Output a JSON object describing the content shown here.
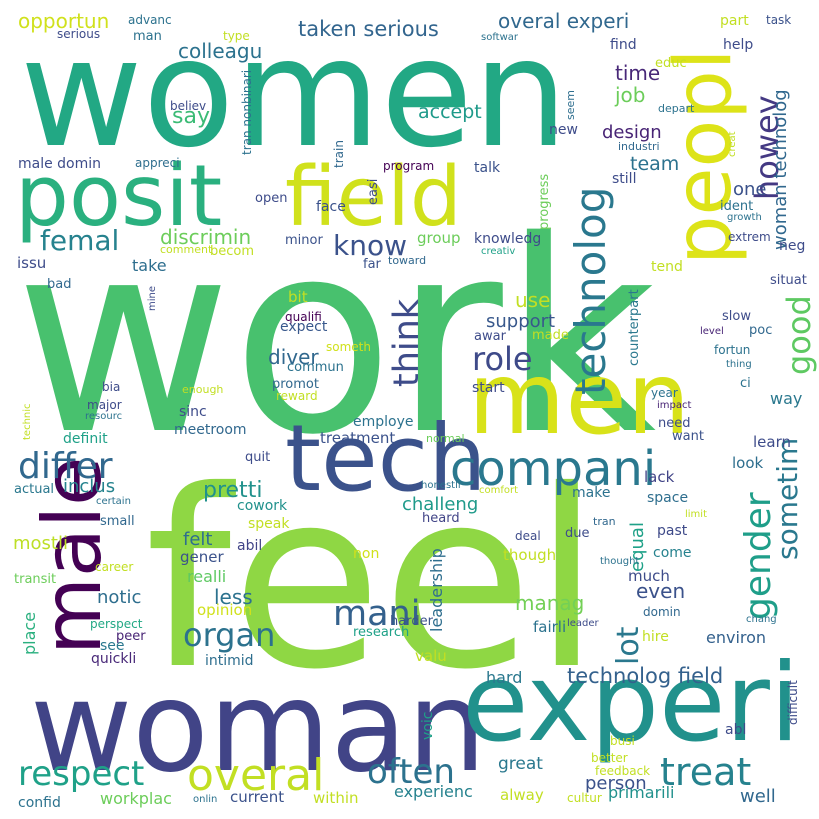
{
  "words": [
    {
      "text": "work",
      "color": "#48c16e"
    },
    {
      "text": "feel",
      "color": "#8fd744"
    },
    {
      "text": "women",
      "color": "#22a884"
    },
    {
      "text": "woman",
      "color": "#414487"
    },
    {
      "text": "experi",
      "color": "#21918c"
    },
    {
      "text": "tech",
      "color": "#3b528b"
    },
    {
      "text": "men",
      "color": "#d8e219"
    },
    {
      "text": "posit",
      "color": "#2ab07f"
    },
    {
      "text": "field",
      "color": "#d0e11c"
    },
    {
      "text": "peopl",
      "color": "#dde318"
    },
    {
      "text": "male",
      "color": "#440154"
    },
    {
      "text": "compani",
      "color": "#2a788e"
    },
    {
      "text": "technolog",
      "color": "#2a788e"
    },
    {
      "text": "overal",
      "color": "#c2df23"
    },
    {
      "text": "treat",
      "color": "#26828e"
    },
    {
      "text": "respect",
      "color": "#1fa188"
    },
    {
      "text": "differ",
      "color": "#31688e"
    },
    {
      "text": "often",
      "color": "#2c728e"
    },
    {
      "text": "gender",
      "color": "#1f9e89"
    },
    {
      "text": "mani",
      "color": "#34618d"
    },
    {
      "text": "organ",
      "color": "#2c728e"
    },
    {
      "text": "role",
      "color": "#3e4a89"
    },
    {
      "text": "think",
      "color": "#3e4c8a"
    },
    {
      "text": "sometim",
      "color": "#2a788e"
    },
    {
      "text": "good",
      "color": "#5ec962"
    },
    {
      "text": "know",
      "color": "#3b528b"
    },
    {
      "text": "femal",
      "color": "#26828e"
    },
    {
      "text": "howev",
      "color": "#443983"
    },
    {
      "text": "lot",
      "color": "#2a788e"
    },
    {
      "text": "opportun",
      "color": "#d0e11c"
    },
    {
      "text": "colleagu",
      "color": "#2c728e"
    },
    {
      "text": "taken serious",
      "color": "#32658e"
    },
    {
      "text": "overal experi",
      "color": "#31688e"
    },
    {
      "text": "technolog field",
      "color": "#34618d"
    },
    {
      "text": "woman technolog",
      "color": "#31688e"
    },
    {
      "text": "discrimin",
      "color": "#6ccd5a"
    },
    {
      "text": "pretti",
      "color": "#21918c"
    },
    {
      "text": "diver",
      "color": "#31688e"
    },
    {
      "text": "manag",
      "color": "#73d056"
    },
    {
      "text": "say",
      "color": "#3bbb75"
    },
    {
      "text": "time",
      "color": "#482878"
    },
    {
      "text": "job",
      "color": "#6ccd5a"
    },
    {
      "text": "design",
      "color": "#482475"
    },
    {
      "text": "accept",
      "color": "#1f9a8a"
    },
    {
      "text": "team",
      "color": "#2c728e"
    },
    {
      "text": "one",
      "color": "#3b528b"
    },
    {
      "text": "use",
      "color": "#c2df23"
    },
    {
      "text": "support",
      "color": "#38588c"
    },
    {
      "text": "even",
      "color": "#3b528b"
    },
    {
      "text": "equal",
      "color": "#1fa188"
    },
    {
      "text": "inclus",
      "color": "#25838e"
    },
    {
      "text": "challeng",
      "color": "#1f9a8a"
    },
    {
      "text": "leadership",
      "color": "#2e6e8e"
    },
    {
      "text": "less",
      "color": "#2c728e"
    },
    {
      "text": "felt",
      "color": "#2e6e8e"
    },
    {
      "text": "notic",
      "color": "#2e6e8e"
    },
    {
      "text": "mostli",
      "color": "#bddf26"
    },
    {
      "text": "place",
      "color": "#2ab07f"
    },
    {
      "text": "much",
      "color": "#3e4c8a"
    },
    {
      "text": "person",
      "color": "#3b528b"
    },
    {
      "text": "great",
      "color": "#2a788e"
    },
    {
      "text": "well",
      "color": "#31688e"
    },
    {
      "text": "workplac",
      "color": "#6ccd5a"
    },
    {
      "text": "primarili",
      "color": "#21918c"
    },
    {
      "text": "experienc",
      "color": "#26828e"
    },
    {
      "text": "current",
      "color": "#3b528b"
    },
    {
      "text": "within",
      "color": "#c2df23"
    },
    {
      "text": "alway",
      "color": "#c2df23"
    },
    {
      "text": "confid",
      "color": "#2c728e"
    },
    {
      "text": "voic",
      "color": "#1fa188"
    },
    {
      "text": "hard",
      "color": "#2a788e"
    },
    {
      "text": "environ",
      "color": "#34618d"
    },
    {
      "text": "hire",
      "color": "#c2df23"
    },
    {
      "text": "fairli",
      "color": "#2c728e"
    },
    {
      "text": "valu",
      "color": "#c2df23"
    },
    {
      "text": "intimid",
      "color": "#2e6e8e"
    },
    {
      "text": "research",
      "color": "#1fa188"
    },
    {
      "text": "opinion",
      "color": "#d0e11c"
    },
    {
      "text": "quickli",
      "color": "#482878"
    },
    {
      "text": "see",
      "color": "#2a788e"
    },
    {
      "text": "peer",
      "color": "#482475"
    },
    {
      "text": "perspect",
      "color": "#22a884"
    },
    {
      "text": "realli",
      "color": "#5ec962"
    },
    {
      "text": "gener",
      "color": "#3b528b"
    },
    {
      "text": "abil",
      "color": "#414487"
    },
    {
      "text": "cowork",
      "color": "#21918c"
    },
    {
      "text": "speak",
      "color": "#c2df23"
    },
    {
      "text": "non",
      "color": "#d0e11c"
    },
    {
      "text": "though",
      "color": "#c2df23"
    },
    {
      "text": "come",
      "color": "#26828e"
    },
    {
      "text": "space",
      "color": "#2e6e8e"
    },
    {
      "text": "past",
      "color": "#3e4a89"
    },
    {
      "text": "domin",
      "color": "#31688e"
    },
    {
      "text": "look",
      "color": "#2e6e8e"
    },
    {
      "text": "learn",
      "color": "#3e4c8a"
    },
    {
      "text": "lack",
      "color": "#414487"
    },
    {
      "text": "make",
      "color": "#2c728e"
    },
    {
      "text": "want",
      "color": "#3b528b"
    },
    {
      "text": "need",
      "color": "#3e4c8a"
    },
    {
      "text": "way",
      "color": "#2a788e"
    },
    {
      "text": "treatment",
      "color": "#3b528b"
    },
    {
      "text": "employe",
      "color": "#2c728e"
    },
    {
      "text": "meetroom",
      "color": "#31688e"
    },
    {
      "text": "sinc",
      "color": "#3e4c8a"
    },
    {
      "text": "definit",
      "color": "#1fa188"
    },
    {
      "text": "actual",
      "color": "#2a788e"
    },
    {
      "text": "small",
      "color": "#31688e"
    },
    {
      "text": "transit",
      "color": "#6ccd5a"
    },
    {
      "text": "career",
      "color": "#c2df23"
    },
    {
      "text": "start",
      "color": "#3e4c8a"
    },
    {
      "text": "harder",
      "color": "#3b528b"
    },
    {
      "text": "heard",
      "color": "#414487"
    },
    {
      "text": "quit",
      "color": "#3e4c8a"
    },
    {
      "text": "commun",
      "color": "#2c728e"
    },
    {
      "text": "promot",
      "color": "#31688e"
    },
    {
      "text": "reward",
      "color": "#c2df23"
    },
    {
      "text": "expect",
      "color": "#38588c"
    },
    {
      "text": "bit",
      "color": "#c2df23"
    },
    {
      "text": "qualifi",
      "color": "#440154"
    },
    {
      "text": "someth",
      "color": "#d0e11c"
    },
    {
      "text": "made",
      "color": "#c2df23"
    },
    {
      "text": "awar",
      "color": "#3e4c8a"
    },
    {
      "text": "counterpart",
      "color": "#2a788e"
    },
    {
      "text": "take",
      "color": "#2e6e8e"
    },
    {
      "text": "issu",
      "color": "#3e4c8a"
    },
    {
      "text": "male domin",
      "color": "#3e4c8a"
    },
    {
      "text": "appreci",
      "color": "#2e6e8e"
    },
    {
      "text": "becom",
      "color": "#c2df23"
    },
    {
      "text": "minor",
      "color": "#3b528b"
    },
    {
      "text": "comment",
      "color": "#c2df23"
    },
    {
      "text": "bad",
      "color": "#31688e"
    },
    {
      "text": "group",
      "color": "#6ccd5a"
    },
    {
      "text": "knowledg",
      "color": "#3e4c8a"
    },
    {
      "text": "creativ",
      "color": "#1fa188"
    },
    {
      "text": "toward",
      "color": "#31688e"
    },
    {
      "text": "far",
      "color": "#3b528b"
    },
    {
      "text": "face",
      "color": "#3b528b"
    },
    {
      "text": "open",
      "color": "#3e4c8a"
    },
    {
      "text": "easi",
      "color": "#3e4c8a"
    },
    {
      "text": "progress",
      "color": "#6ccd5a"
    },
    {
      "text": "talk",
      "color": "#3b528b"
    },
    {
      "text": "program",
      "color": "#440154"
    },
    {
      "text": "still",
      "color": "#3e4c8a"
    },
    {
      "text": "tend",
      "color": "#c2df23"
    },
    {
      "text": "neg",
      "color": "#3e4c8a"
    },
    {
      "text": "situat",
      "color": "#3e4c8a"
    },
    {
      "text": "slow",
      "color": "#3e4c8a"
    },
    {
      "text": "poc",
      "color": "#31688e"
    },
    {
      "text": "level",
      "color": "#482475"
    },
    {
      "text": "fortun",
      "color": "#2c728e"
    },
    {
      "text": "thing",
      "color": "#2c728e"
    },
    {
      "text": "ci",
      "color": "#2c728e"
    },
    {
      "text": "year",
      "color": "#2c728e"
    },
    {
      "text": "impact",
      "color": "#482475"
    },
    {
      "text": "extrem",
      "color": "#3e4c8a"
    },
    {
      "text": "growth",
      "color": "#2c728e"
    },
    {
      "text": "ident",
      "color": "#2c728e"
    },
    {
      "text": "creat",
      "color": "#c2df23"
    },
    {
      "text": "depart",
      "color": "#2c728e"
    },
    {
      "text": "industri",
      "color": "#31688e"
    },
    {
      "text": "seem",
      "color": "#2e6e8e"
    },
    {
      "text": "new",
      "color": "#3e4c8a"
    },
    {
      "text": "help",
      "color": "#3e4c8a"
    },
    {
      "text": "find",
      "color": "#3e4c8a"
    },
    {
      "text": "educ",
      "color": "#c2df23"
    },
    {
      "text": "part",
      "color": "#c2df23"
    },
    {
      "text": "task",
      "color": "#3b528b"
    },
    {
      "text": "softwar",
      "color": "#2c728e"
    },
    {
      "text": "advanc",
      "color": "#2c728e"
    },
    {
      "text": "serious",
      "color": "#3e4c8a"
    },
    {
      "text": "man",
      "color": "#2c728e"
    },
    {
      "text": "type",
      "color": "#c2df23"
    },
    {
      "text": "tran nonbinari",
      "color": "#2c728e"
    },
    {
      "text": "believ",
      "color": "#3e4c8a"
    },
    {
      "text": "train",
      "color": "#31688e"
    },
    {
      "text": "mine",
      "color": "#3e4c8a"
    },
    {
      "text": "bia",
      "color": "#3e4c8a"
    },
    {
      "text": "technic",
      "color": "#c2df23"
    },
    {
      "text": "major",
      "color": "#3e4c8a"
    },
    {
      "text": "resourc",
      "color": "#2c728e"
    },
    {
      "text": "enough",
      "color": "#c2df23"
    },
    {
      "text": "normal",
      "color": "#6ccd5a"
    },
    {
      "text": "comfort",
      "color": "#c2df23"
    },
    {
      "text": "certain",
      "color": "#2c728e"
    },
    {
      "text": "honestli",
      "color": "#2c728e"
    },
    {
      "text": "deal",
      "color": "#3e4c8a"
    },
    {
      "text": "due",
      "color": "#3e4c8a"
    },
    {
      "text": "tran",
      "color": "#31688e"
    },
    {
      "text": "thought",
      "color": "#2c728e"
    },
    {
      "text": "limit",
      "color": "#c2df23"
    },
    {
      "text": "leader",
      "color": "#3e4c8a"
    },
    {
      "text": "chang",
      "color": "#2c728e"
    },
    {
      "text": "difficult",
      "color": "#3e4c8a"
    },
    {
      "text": "abl",
      "color": "#3e4c8a"
    },
    {
      "text": "busi",
      "color": "#c2df23"
    },
    {
      "text": "better",
      "color": "#c2df23"
    },
    {
      "text": "feedback",
      "color": "#c2df23"
    },
    {
      "text": "cultur",
      "color": "#c2df23"
    },
    {
      "text": "onlin",
      "color": "#2c728e"
    }
  ]
}
